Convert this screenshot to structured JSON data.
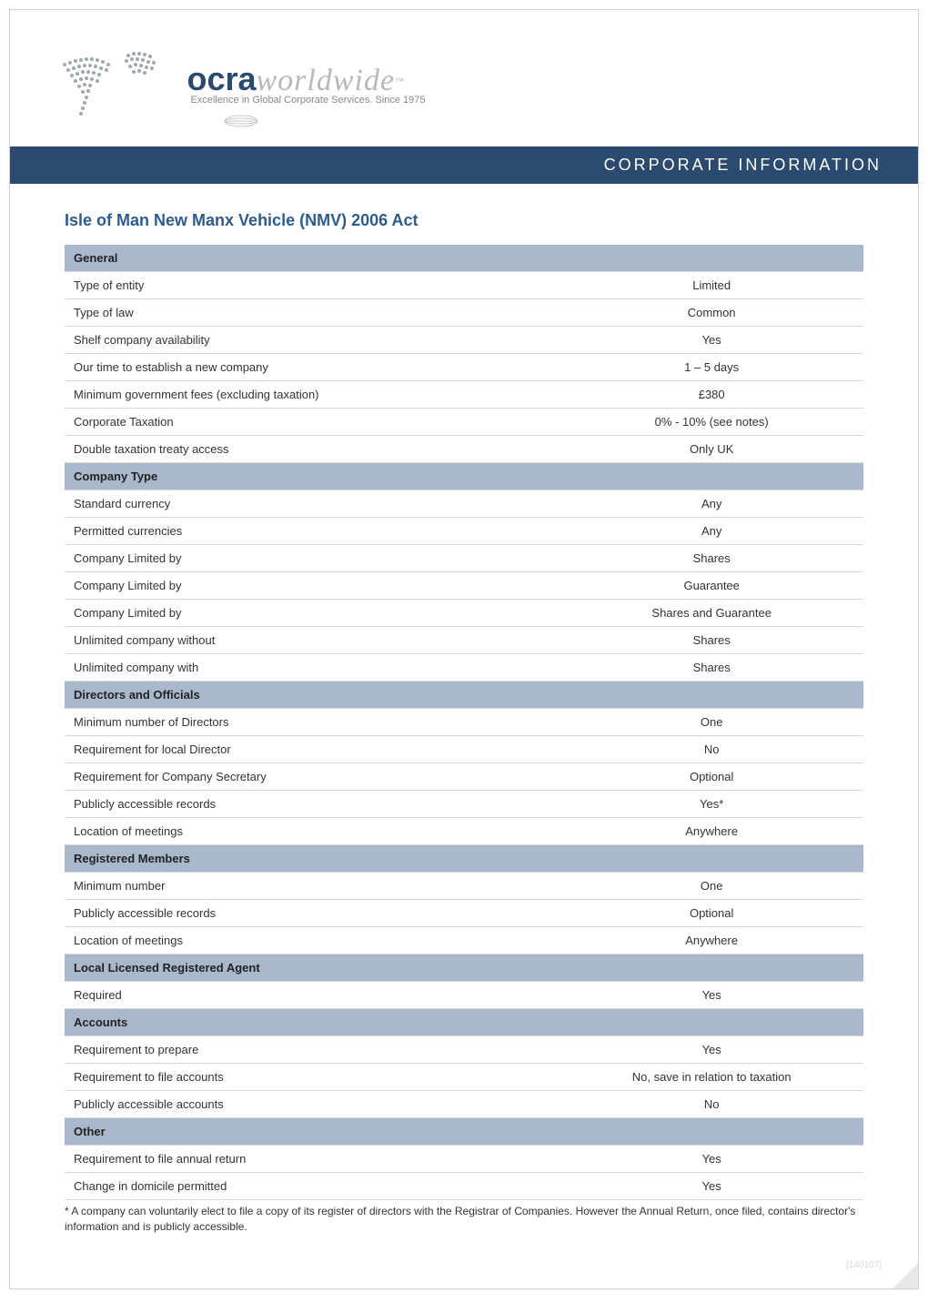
{
  "logo": {
    "brand_bold": "ocra",
    "brand_light": "worldwide",
    "tm": "™",
    "tagline": "Excellence in Global Corporate Services. Since 1975",
    "map_color": "#9fa8b0",
    "brand_bold_color": "#2b4a6f",
    "brand_light_color": "#b8b8b8"
  },
  "banner": {
    "text": "CORPORATE INFORMATION",
    "bg_color": "#2b4a6f",
    "text_color": "#ffffff"
  },
  "title": "Isle of Man New Manx Vehicle (NMV) 2006 Act",
  "title_color": "#2b5c8f",
  "section_header_bg": "#a9b9cb",
  "row_border_color": "#d8d8d8",
  "sections": [
    {
      "header": "General",
      "rows": [
        {
          "label": "Type of entity",
          "value": "Limited"
        },
        {
          "label": "Type of law",
          "value": "Common"
        },
        {
          "label": "Shelf company availability",
          "value": "Yes"
        },
        {
          "label": "Our time to establish a new company",
          "value": "1 – 5 days"
        },
        {
          "label": "Minimum government fees (excluding taxation)",
          "value": "£380"
        },
        {
          "label": "Corporate Taxation",
          "value": "0% - 10% (see notes)"
        },
        {
          "label": "Double taxation treaty access",
          "value": "Only UK"
        }
      ]
    },
    {
      "header": "Company Type",
      "rows": [
        {
          "label": "Standard currency",
          "value": "Any"
        },
        {
          "label": "Permitted currencies",
          "value": "Any"
        },
        {
          "label": "Company Limited by",
          "value": "Shares"
        },
        {
          "label": "Company Limited by",
          "value": "Guarantee"
        },
        {
          "label": "Company Limited by",
          "value": "Shares and Guarantee"
        },
        {
          "label": "Unlimited company without",
          "value": "Shares"
        },
        {
          "label": "Unlimited company with",
          "value": "Shares"
        }
      ]
    },
    {
      "header": "Directors and Officials",
      "rows": [
        {
          "label": "Minimum number of Directors",
          "value": "One"
        },
        {
          "label": "Requirement for local Director",
          "value": "No"
        },
        {
          "label": "Requirement for Company Secretary",
          "value": "Optional"
        },
        {
          "label": "Publicly accessible records",
          "value": "Yes*"
        },
        {
          "label": "Location of meetings",
          "value": "Anywhere"
        }
      ]
    },
    {
      "header": "Registered Members",
      "rows": [
        {
          "label": "Minimum number",
          "value": "One"
        },
        {
          "label": "Publicly accessible records",
          "value": "Optional"
        },
        {
          "label": "Location of meetings",
          "value": "Anywhere"
        }
      ]
    },
    {
      "header": "Local Licensed Registered Agent",
      "rows": [
        {
          "label": "Required",
          "value": "Yes"
        }
      ]
    },
    {
      "header": "Accounts",
      "rows": [
        {
          "label": "Requirement to prepare",
          "value": "Yes"
        },
        {
          "label": "Requirement to file accounts",
          "value": "No, save in relation to taxation"
        },
        {
          "label": "Publicly accessible accounts",
          "value": "No"
        }
      ]
    },
    {
      "header": "Other",
      "rows": [
        {
          "label": "Requirement to file annual return",
          "value": "Yes"
        },
        {
          "label": "Change in domicile permitted",
          "value": "Yes"
        }
      ]
    }
  ],
  "footnote": "* A company can voluntarily elect to file a copy of its register of directors with the Registrar of Companies.  However the Annual Return, once filed, contains director's information and is publicly accessible.",
  "docid": "[140107]"
}
